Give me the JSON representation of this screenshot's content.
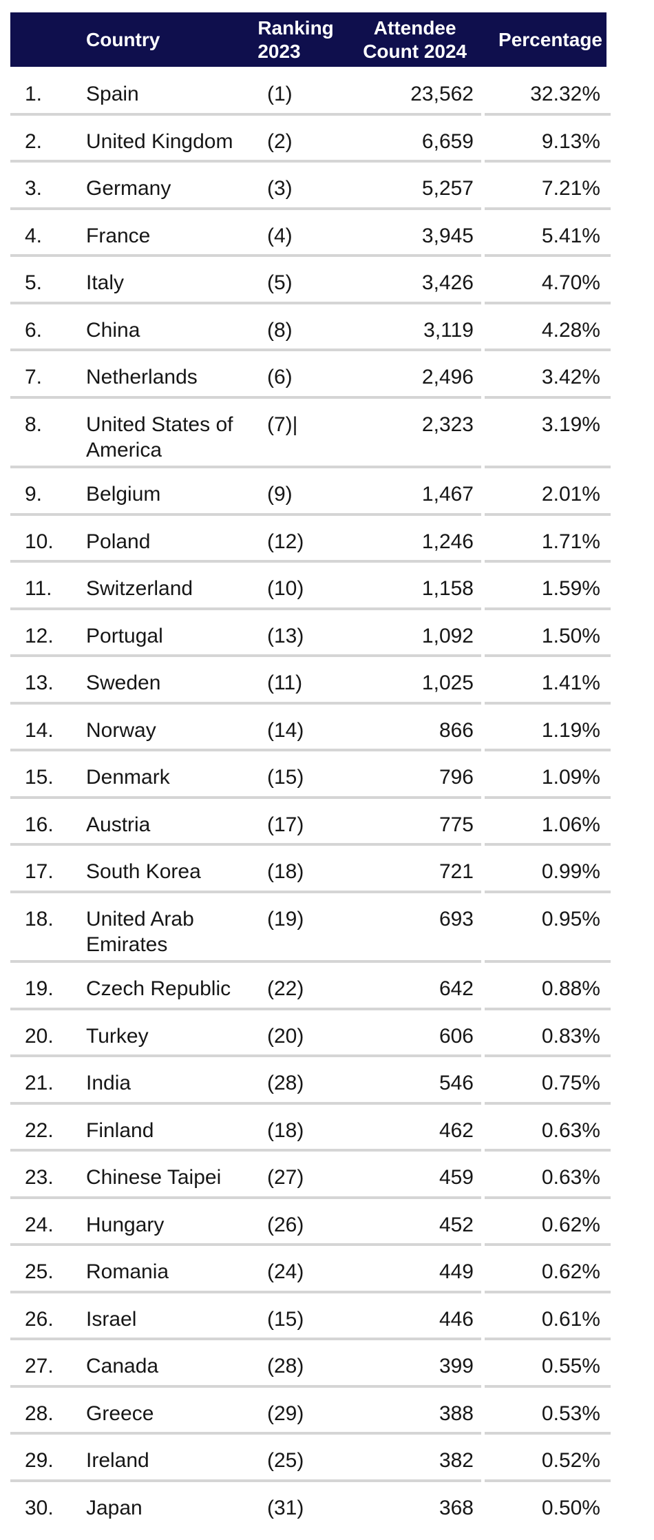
{
  "colors": {
    "header_background": "#0f0f4d",
    "header_text": "#ffffff",
    "body_text": "#161616",
    "row_separator": "#d5d5d5",
    "page_background": "#ffffff"
  },
  "table": {
    "headers": {
      "country": "Country",
      "ranking": "Ranking\n2023",
      "attendee": "Attendee\nCount 2024",
      "percentage": "Percentage"
    }
  },
  "chart_data": {
    "type": "table",
    "columns": [
      "",
      "Country",
      "Ranking 2023",
      "Attendee Count 2024",
      "Percentage"
    ],
    "rows": [
      {
        "index": "1.",
        "country": "Spain",
        "ranking_2023": "(1)",
        "attendee_count_2024": "23,562",
        "percentage": "32.32%"
      },
      {
        "index": "2.",
        "country": "United Kingdom",
        "ranking_2023": "(2)",
        "attendee_count_2024": "6,659",
        "percentage": "9.13%"
      },
      {
        "index": "3.",
        "country": "Germany",
        "ranking_2023": "(3)",
        "attendee_count_2024": "5,257",
        "percentage": "7.21%"
      },
      {
        "index": "4.",
        "country": "France",
        "ranking_2023": "(4)",
        "attendee_count_2024": "3,945",
        "percentage": "5.41%"
      },
      {
        "index": "5.",
        "country": "Italy",
        "ranking_2023": "(5)",
        "attendee_count_2024": "3,426",
        "percentage": "4.70%"
      },
      {
        "index": "6.",
        "country": "China",
        "ranking_2023": "(8)",
        "attendee_count_2024": "3,119",
        "percentage": "4.28%"
      },
      {
        "index": "7.",
        "country": "Netherlands",
        "ranking_2023": "(6)",
        "attendee_count_2024": "2,496",
        "percentage": "3.42%"
      },
      {
        "index": "8.",
        "country": "United States of America",
        "ranking_2023": "(7)|",
        "attendee_count_2024": "2,323",
        "percentage": "3.19%"
      },
      {
        "index": "9.",
        "country": "Belgium",
        "ranking_2023": "(9)",
        "attendee_count_2024": "1,467",
        "percentage": "2.01%"
      },
      {
        "index": "10.",
        "country": "Poland",
        "ranking_2023": "(12)",
        "attendee_count_2024": "1,246",
        "percentage": "1.71%"
      },
      {
        "index": "11.",
        "country": "Switzerland",
        "ranking_2023": "(10)",
        "attendee_count_2024": "1,158",
        "percentage": "1.59%"
      },
      {
        "index": "12.",
        "country": "Portugal",
        "ranking_2023": "(13)",
        "attendee_count_2024": "1,092",
        "percentage": "1.50%"
      },
      {
        "index": "13.",
        "country": "Sweden",
        "ranking_2023": "(11)",
        "attendee_count_2024": "1,025",
        "percentage": "1.41%"
      },
      {
        "index": "14.",
        "country": "Norway",
        "ranking_2023": "(14)",
        "attendee_count_2024": "866",
        "percentage": "1.19%"
      },
      {
        "index": "15.",
        "country": "Denmark",
        "ranking_2023": "(15)",
        "attendee_count_2024": "796",
        "percentage": "1.09%"
      },
      {
        "index": "16.",
        "country": "Austria",
        "ranking_2023": "(17)",
        "attendee_count_2024": "775",
        "percentage": "1.06%"
      },
      {
        "index": "17.",
        "country": "South Korea",
        "ranking_2023": "(18)",
        "attendee_count_2024": "721",
        "percentage": "0.99%"
      },
      {
        "index": "18.",
        "country": "United Arab Emirates",
        "ranking_2023": "(19)",
        "attendee_count_2024": "693",
        "percentage": "0.95%"
      },
      {
        "index": "19.",
        "country": "Czech Republic",
        "ranking_2023": "(22)",
        "attendee_count_2024": "642",
        "percentage": "0.88%"
      },
      {
        "index": "20.",
        "country": "Turkey",
        "ranking_2023": "(20)",
        "attendee_count_2024": "606",
        "percentage": "0.83%"
      },
      {
        "index": "21.",
        "country": "India",
        "ranking_2023": "(28)",
        "attendee_count_2024": "546",
        "percentage": "0.75%"
      },
      {
        "index": "22.",
        "country": "Finland",
        "ranking_2023": "(18)",
        "attendee_count_2024": "462",
        "percentage": "0.63%"
      },
      {
        "index": "23.",
        "country": "Chinese Taipei",
        "ranking_2023": "(27)",
        "attendee_count_2024": "459",
        "percentage": "0.63%"
      },
      {
        "index": "24.",
        "country": "Hungary",
        "ranking_2023": "(26)",
        "attendee_count_2024": "452",
        "percentage": "0.62%"
      },
      {
        "index": "25.",
        "country": "Romania",
        "ranking_2023": "(24)",
        "attendee_count_2024": "449",
        "percentage": "0.62%"
      },
      {
        "index": "26.",
        "country": "Israel",
        "ranking_2023": "(15)",
        "attendee_count_2024": "446",
        "percentage": "0.61%"
      },
      {
        "index": "27.",
        "country": "Canada",
        "ranking_2023": "(28)",
        "attendee_count_2024": "399",
        "percentage": "0.55%"
      },
      {
        "index": "28.",
        "country": "Greece",
        "ranking_2023": "(29)",
        "attendee_count_2024": "388",
        "percentage": "0.53%"
      },
      {
        "index": "29.",
        "country": "Ireland",
        "ranking_2023": "(25)",
        "attendee_count_2024": "382",
        "percentage": "0.52%"
      },
      {
        "index": "30.",
        "country": "Japan",
        "ranking_2023": "(31)",
        "attendee_count_2024": "368",
        "percentage": "0.50%"
      }
    ]
  }
}
